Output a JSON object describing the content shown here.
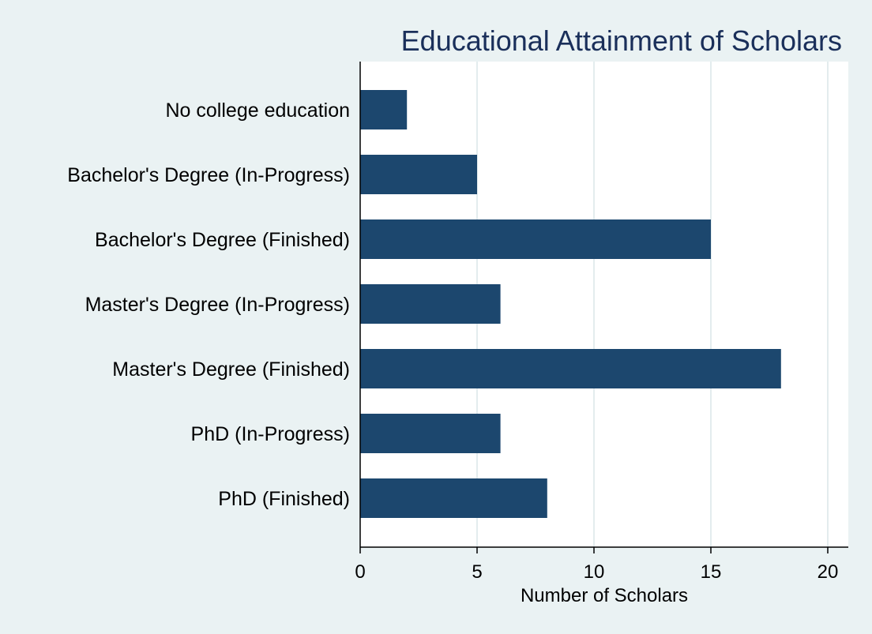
{
  "chart_data": {
    "type": "bar",
    "orientation": "horizontal",
    "title": "Educational Attainment of Scholars",
    "xlabel": "Number of Scholars",
    "ylabel": "",
    "categories": [
      "No college education",
      "Bachelor's Degree (In-Progress)",
      "Bachelor's Degree (Finished)",
      "Master's Degree (In-Progress)",
      "Master's Degree (Finished)",
      "PhD (In-Progress)",
      "PhD (Finished)"
    ],
    "values": [
      2,
      5,
      15,
      6,
      18,
      6,
      8
    ],
    "xlim": [
      0,
      21
    ],
    "xticks": [
      0,
      5,
      10,
      15,
      20
    ],
    "xtick_labels": [
      "0",
      "5",
      "10",
      "15",
      "20"
    ],
    "grid": "vertical",
    "legend": "none",
    "colors": {
      "bar": "#1C476E",
      "background": "#EAF2F3",
      "plot_background": "#FFFFFF",
      "grid": "#E3ECEE",
      "title": "#1A2F5A",
      "axis": "#000000"
    }
  }
}
